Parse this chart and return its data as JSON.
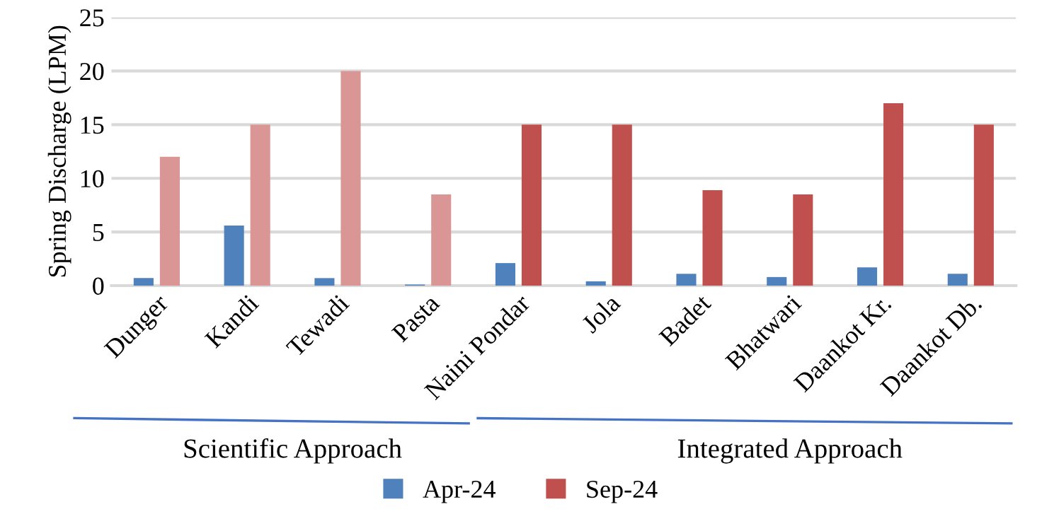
{
  "chart_data": {
    "type": "bar",
    "ylabel": "Spring Discharge (LPM)",
    "categories": [
      "Dunger",
      "Kandi",
      "Tewadi",
      "Pasta",
      "Naini Pondar",
      "Jola",
      "Badet",
      "Bhatwari",
      "Daankot Kr.",
      "Daankot Db."
    ],
    "series": [
      {
        "name": "Apr-24",
        "color": "#4f81bd",
        "values": [
          0.7,
          5.6,
          0.7,
          0.1,
          2.1,
          0.4,
          1.1,
          0.8,
          1.7,
          1.1
        ]
      },
      {
        "name": "Sep-24",
        "color": "#c0504d",
        "colors": [
          "#d99694",
          "#d99694",
          "#d99694",
          "#d99694",
          "#c0504d",
          "#c0504d",
          "#c0504d",
          "#c0504d",
          "#c0504d",
          "#c0504d"
        ],
        "values": [
          12,
          15,
          20,
          8.5,
          15,
          15,
          8.9,
          8.5,
          17,
          15
        ]
      }
    ],
    "ylim": [
      0,
      25
    ],
    "yticks": [
      0,
      5,
      10,
      15,
      20,
      25
    ],
    "grid": "y",
    "legend": "bottom",
    "annotations": [
      "Scientific Approach",
      "Integrated Approach"
    ]
  }
}
